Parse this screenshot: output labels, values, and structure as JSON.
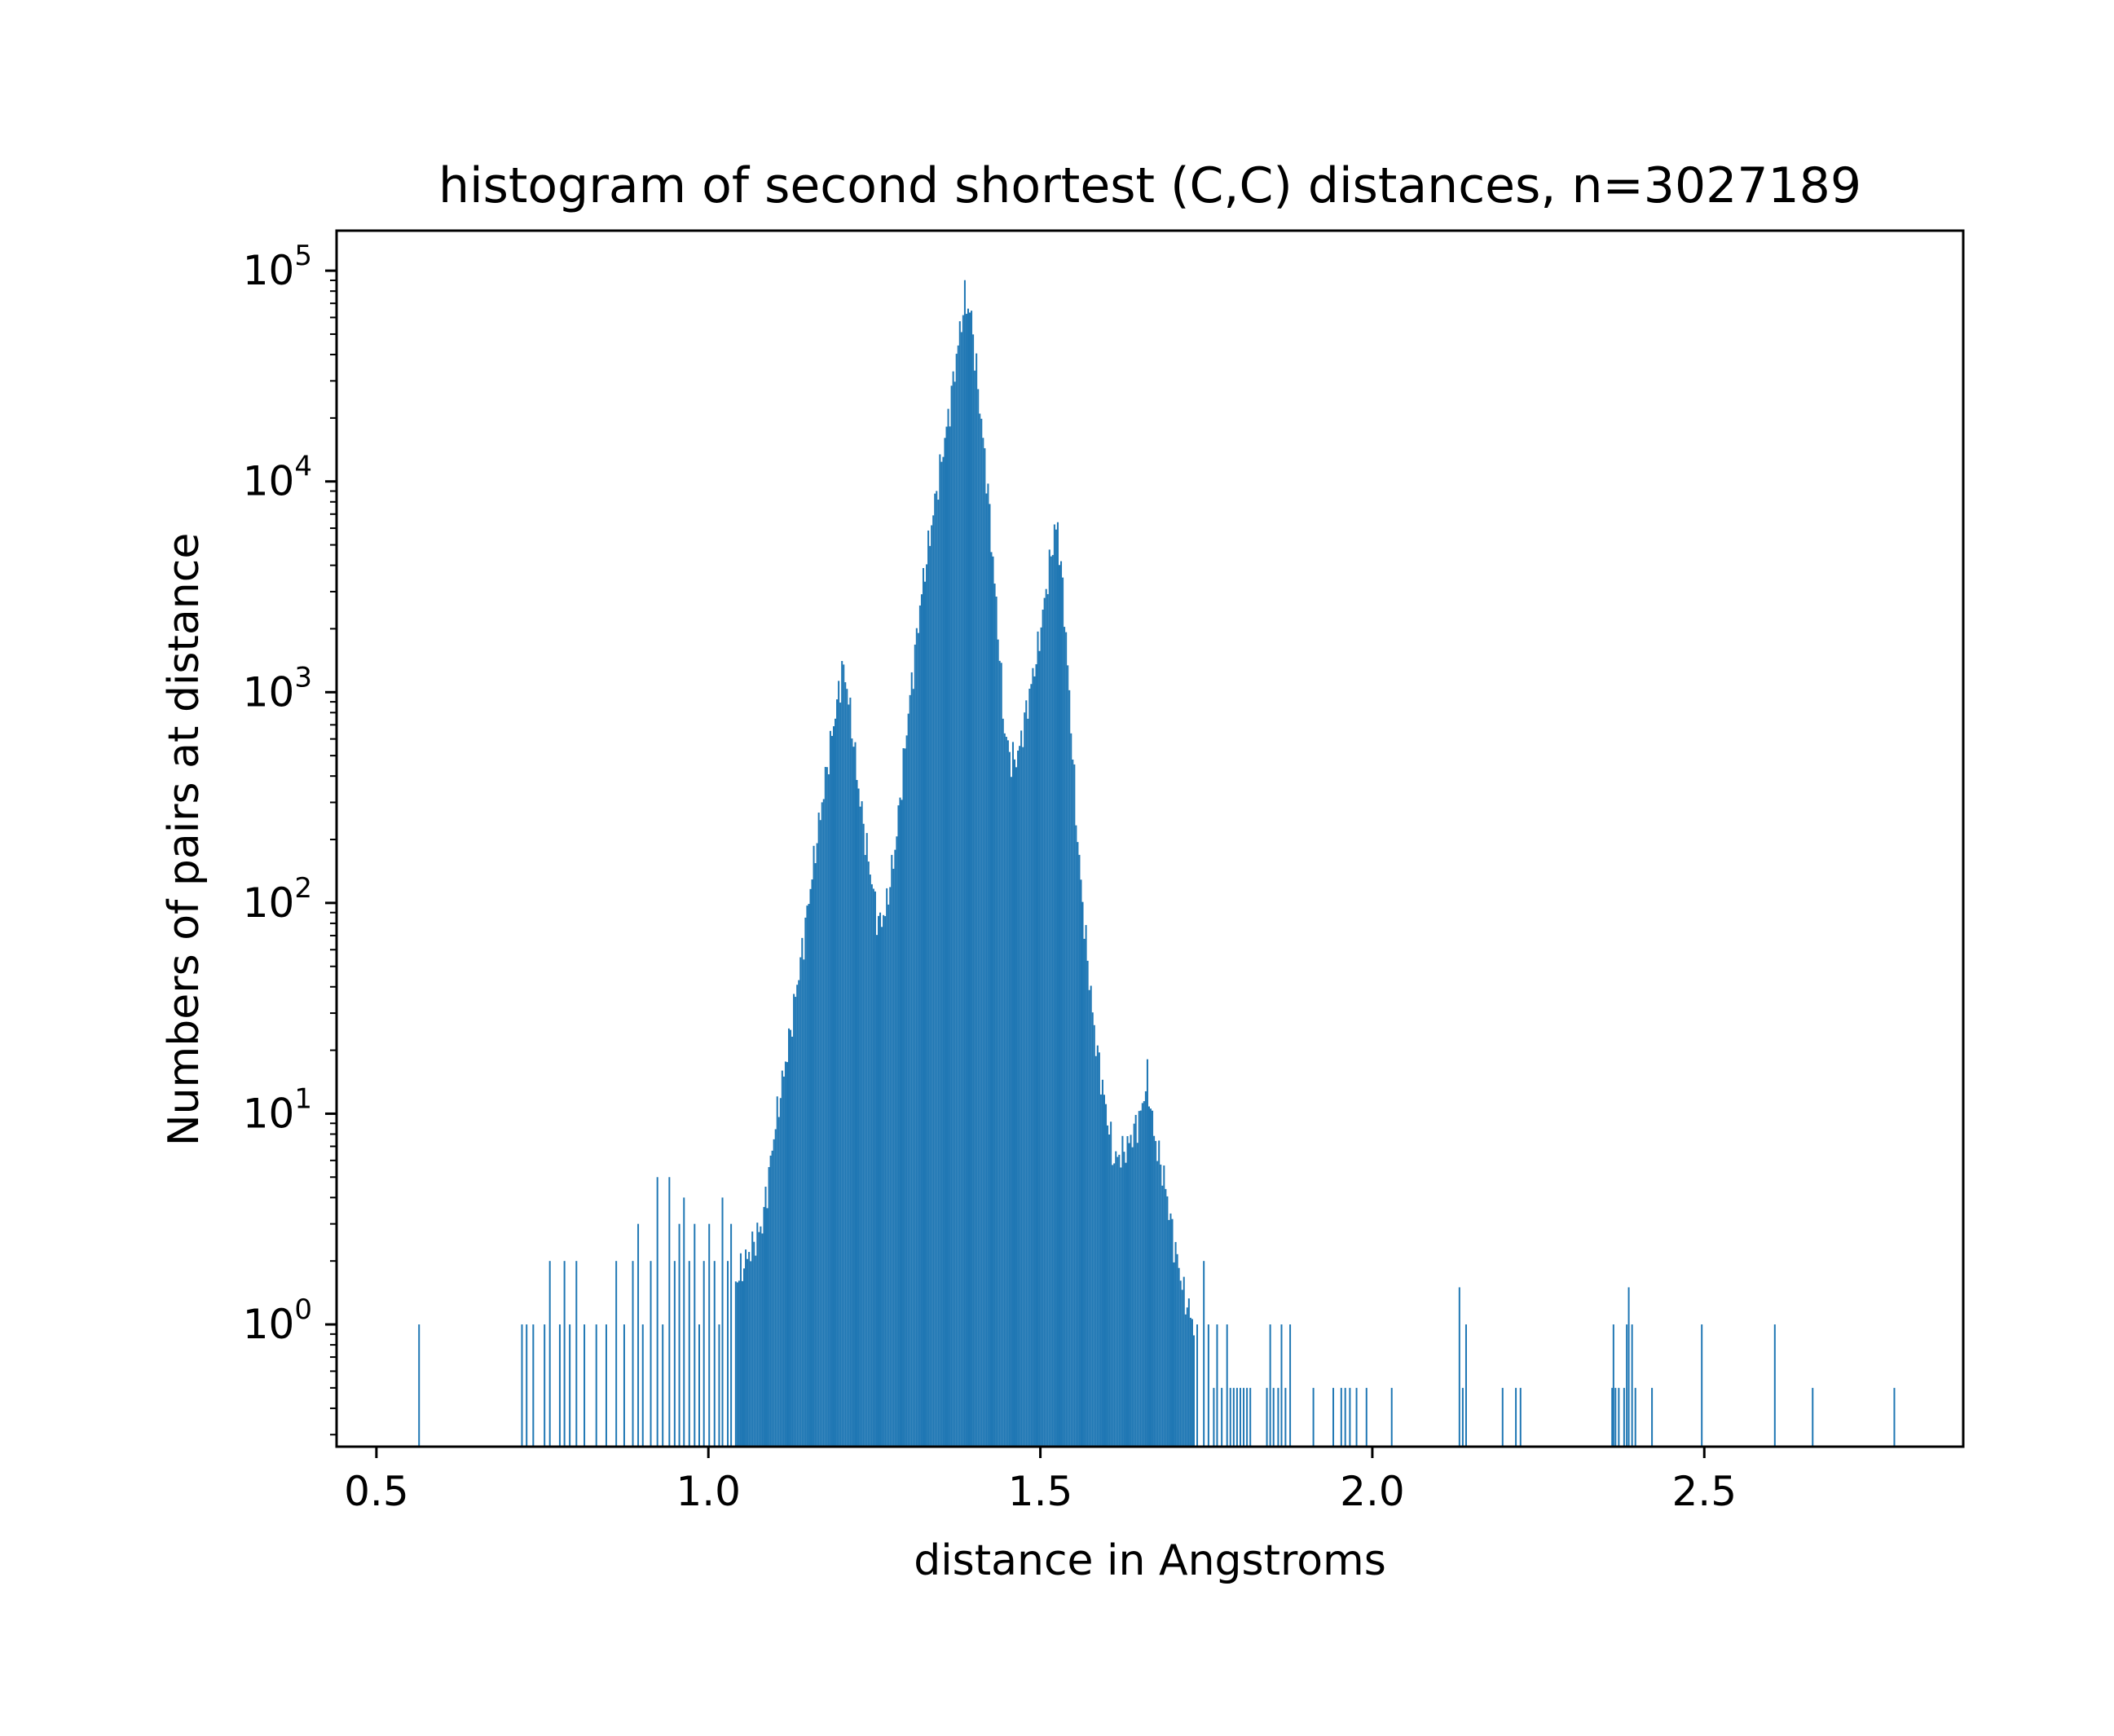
{
  "chart_data": {
    "type": "histogram",
    "title": "histogram of second shortest (C,C) distances, n=3027189",
    "xlabel": "distance in Angstroms",
    "ylabel": "Numbers of pairs at distance",
    "yscale": "log",
    "xlim": [
      0.44,
      2.89
    ],
    "ylim_log10": [
      -0.58,
      5.19
    ],
    "bar_color": "#1f77b4",
    "x_ticks": [
      {
        "value": 0.5,
        "label": "0.5"
      },
      {
        "value": 1.0,
        "label": "1.0"
      },
      {
        "value": 1.5,
        "label": "1.5"
      },
      {
        "value": 2.0,
        "label": "2.0"
      },
      {
        "value": 2.5,
        "label": "2.5"
      }
    ],
    "y_ticks": [
      {
        "exp": 0,
        "base": "10",
        "sup": "0"
      },
      {
        "exp": 1,
        "base": "10",
        "sup": "1"
      },
      {
        "exp": 2,
        "base": "10",
        "sup": "2"
      },
      {
        "exp": 3,
        "base": "10",
        "sup": "3"
      },
      {
        "exp": 4,
        "base": "10",
        "sup": "4"
      },
      {
        "exp": 5,
        "base": "10",
        "sup": "5"
      }
    ],
    "bin_width": 0.0025,
    "envelope": [
      [
        1.04,
        1.6
      ],
      [
        1.08,
        3
      ],
      [
        1.1,
        9
      ],
      [
        1.12,
        22
      ],
      [
        1.14,
        60
      ],
      [
        1.16,
        180
      ],
      [
        1.18,
        500
      ],
      [
        1.195,
        1000
      ],
      [
        1.2,
        1300
      ],
      [
        1.205,
        1200
      ],
      [
        1.215,
        700
      ],
      [
        1.225,
        350
      ],
      [
        1.24,
        160
      ],
      [
        1.255,
        80
      ],
      [
        1.265,
        90
      ],
      [
        1.28,
        180
      ],
      [
        1.3,
        800
      ],
      [
        1.32,
        3000
      ],
      [
        1.34,
        8000
      ],
      [
        1.36,
        20000
      ],
      [
        1.375,
        45000
      ],
      [
        1.385,
        75000
      ],
      [
        1.395,
        60000
      ],
      [
        1.405,
        28000
      ],
      [
        1.42,
        9000
      ],
      [
        1.435,
        2000
      ],
      [
        1.445,
        650
      ],
      [
        1.455,
        480
      ],
      [
        1.465,
        500
      ],
      [
        1.48,
        900
      ],
      [
        1.495,
        1600
      ],
      [
        1.51,
        3500
      ],
      [
        1.52,
        5800
      ],
      [
        1.525,
        6000
      ],
      [
        1.535,
        2500
      ],
      [
        1.545,
        700
      ],
      [
        1.555,
        200
      ],
      [
        1.565,
        80
      ],
      [
        1.58,
        25
      ],
      [
        1.595,
        12
      ],
      [
        1.61,
        6
      ],
      [
        1.63,
        7
      ],
      [
        1.65,
        10
      ],
      [
        1.66,
        15
      ],
      [
        1.67,
        8
      ],
      [
        1.685,
        5
      ],
      [
        1.7,
        2.5
      ],
      [
        1.715,
        1.4
      ],
      [
        1.73,
        1
      ]
    ],
    "sparse_bins": [
      [
        0.563,
        1
      ],
      [
        0.718,
        1
      ],
      [
        0.725,
        1
      ],
      [
        0.735,
        1
      ],
      [
        0.752,
        1
      ],
      [
        0.76,
        2
      ],
      [
        0.775,
        1
      ],
      [
        0.782,
        2
      ],
      [
        0.79,
        1
      ],
      [
        0.8,
        2
      ],
      [
        0.812,
        1
      ],
      [
        0.83,
        1
      ],
      [
        0.845,
        1
      ],
      [
        0.86,
        2
      ],
      [
        0.872,
        1
      ],
      [
        0.885,
        2
      ],
      [
        0.893,
        3
      ],
      [
        0.9,
        1
      ],
      [
        0.912,
        2
      ],
      [
        0.922,
        5
      ],
      [
        0.93,
        1
      ],
      [
        0.94,
        5
      ],
      [
        0.948,
        2
      ],
      [
        0.955,
        3
      ],
      [
        0.962,
        4
      ],
      [
        0.97,
        2
      ],
      [
        0.978,
        3
      ],
      [
        0.985,
        1
      ],
      [
        0.992,
        2
      ],
      [
        1.0,
        3
      ],
      [
        1.008,
        2
      ],
      [
        1.015,
        1
      ],
      [
        1.02,
        4
      ],
      [
        1.028,
        2
      ],
      [
        1.033,
        3
      ],
      [
        1.735,
        1
      ],
      [
        1.745,
        2
      ],
      [
        1.752,
        1
      ],
      [
        1.76,
        0.5
      ],
      [
        1.765,
        1
      ],
      [
        1.772,
        0.5
      ],
      [
        1.78,
        1
      ],
      [
        1.785,
        0.5
      ],
      [
        1.79,
        0.5
      ],
      [
        1.795,
        0.5
      ],
      [
        1.8,
        0.5
      ],
      [
        1.805,
        0.5
      ],
      [
        1.81,
        0.5
      ],
      [
        1.815,
        0.5
      ],
      [
        1.84,
        0.5
      ],
      [
        1.845,
        1
      ],
      [
        1.85,
        0.5
      ],
      [
        1.857,
        0.5
      ],
      [
        1.862,
        1
      ],
      [
        1.868,
        0.5
      ],
      [
        1.875,
        1
      ],
      [
        1.91,
        0.5
      ],
      [
        1.94,
        0.5
      ],
      [
        1.952,
        0.5
      ],
      [
        1.958,
        0.5
      ],
      [
        1.965,
        0.5
      ],
      [
        1.975,
        0.5
      ],
      [
        1.99,
        0.5
      ],
      [
        2.028,
        0.5
      ],
      [
        2.13,
        1.5
      ],
      [
        2.135,
        0.5
      ],
      [
        2.14,
        1
      ],
      [
        2.195,
        0.5
      ],
      [
        2.215,
        0.5
      ],
      [
        2.222,
        0.5
      ],
      [
        2.36,
        0.5
      ],
      [
        2.362,
        1
      ],
      [
        2.365,
        0.5
      ],
      [
        2.37,
        0.5
      ],
      [
        2.378,
        0.5
      ],
      [
        2.382,
        1
      ],
      [
        2.385,
        1.5
      ],
      [
        2.39,
        1
      ],
      [
        2.395,
        0.5
      ],
      [
        2.42,
        0.5
      ],
      [
        2.495,
        1
      ],
      [
        2.605,
        1
      ],
      [
        2.662,
        0.5
      ],
      [
        2.785,
        0.5
      ]
    ]
  }
}
